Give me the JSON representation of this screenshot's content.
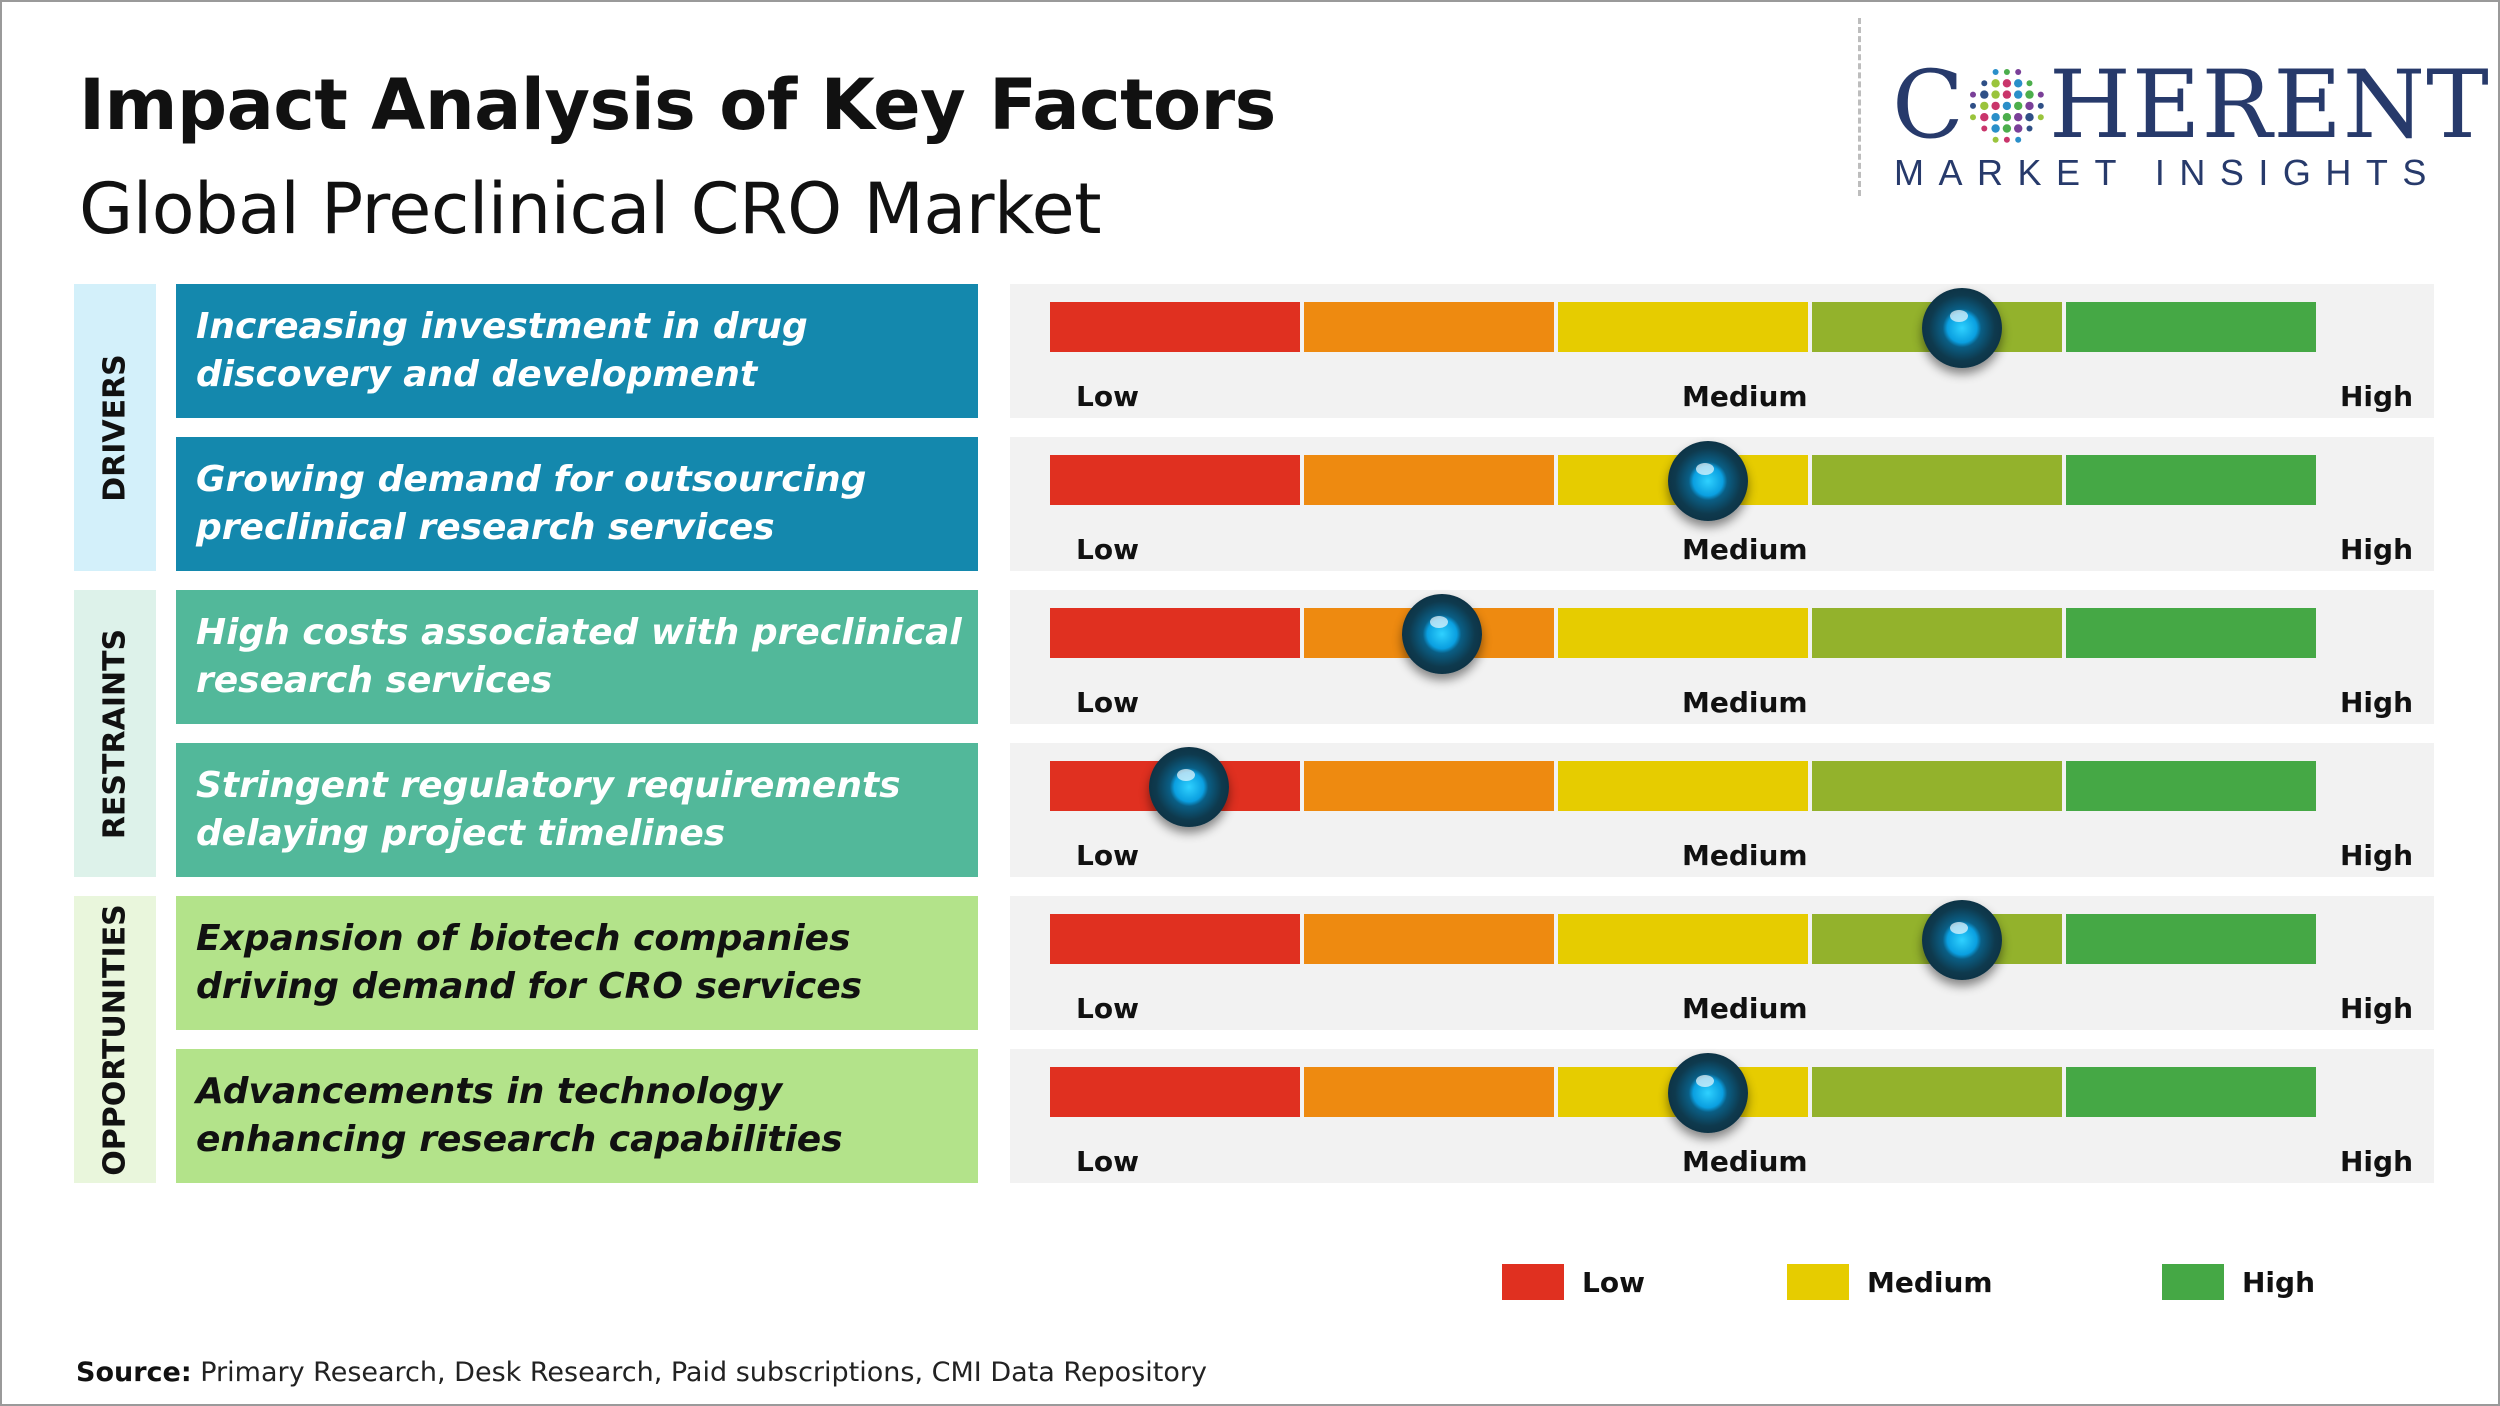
{
  "title": "Impact Analysis of Key Factors",
  "subtitle": "Global Preclinical CRO Market",
  "logo": {
    "main_left": "C",
    "main_right": "HERENT",
    "sub": "MARKET INSIGHTS"
  },
  "colors": {
    "low": "#e03020",
    "low_medium": "#ee8a10",
    "medium": "#e6cc00",
    "medium_high": "#93b22c",
    "high": "#45a845",
    "drivers_band": "#d3f0fa",
    "drivers_box": "#1488ad",
    "restraints_band": "#ddf2ea",
    "restraints_box": "#52b89a",
    "opportunities_band": "#e9f6dc",
    "opportunities_box": "#b3e38a"
  },
  "chart_data": {
    "type": "gauge",
    "scale_labels": [
      "Low",
      "Medium",
      "High"
    ],
    "scale_segments": 5,
    "categories": [
      {
        "name": "DRIVERS",
        "band_color": "#d3f0fa",
        "box_color": "#1488ad",
        "text_color": "#ffffff"
      },
      {
        "name": "RESTRAINTS",
        "band_color": "#ddf2ea",
        "box_color": "#52b89a",
        "text_color": "#ffffff"
      },
      {
        "name": "OPPORTUNITIES",
        "band_color": "#e9f6dc",
        "box_color": "#b3e38a",
        "text_color": "#111111"
      }
    ],
    "factors": [
      {
        "category": 0,
        "text": "Increasing investment in drug discovery and development",
        "impact": 0.72
      },
      {
        "category": 0,
        "text": "Growing demand for outsourcing preclinical research services",
        "impact": 0.52
      },
      {
        "category": 1,
        "text": "High costs associated with preclinical research services",
        "impact": 0.31
      },
      {
        "category": 1,
        "text": "Stringent regulatory requirements delaying project timelines",
        "impact": 0.11
      },
      {
        "category": 2,
        "text": "Expansion of biotech companies driving demand for CRO services",
        "impact": 0.72
      },
      {
        "category": 2,
        "text": "Advancements in technology enhancing research capabilities",
        "impact": 0.52
      }
    ],
    "legend": [
      {
        "label": "Low",
        "color": "#e03020"
      },
      {
        "label": "Medium",
        "color": "#e6cc00"
      },
      {
        "label": "High",
        "color": "#45a845"
      }
    ]
  },
  "source": {
    "label": "Source:",
    "text": " Primary Research, Desk Research, Paid subscriptions, CMI Data Repository"
  }
}
